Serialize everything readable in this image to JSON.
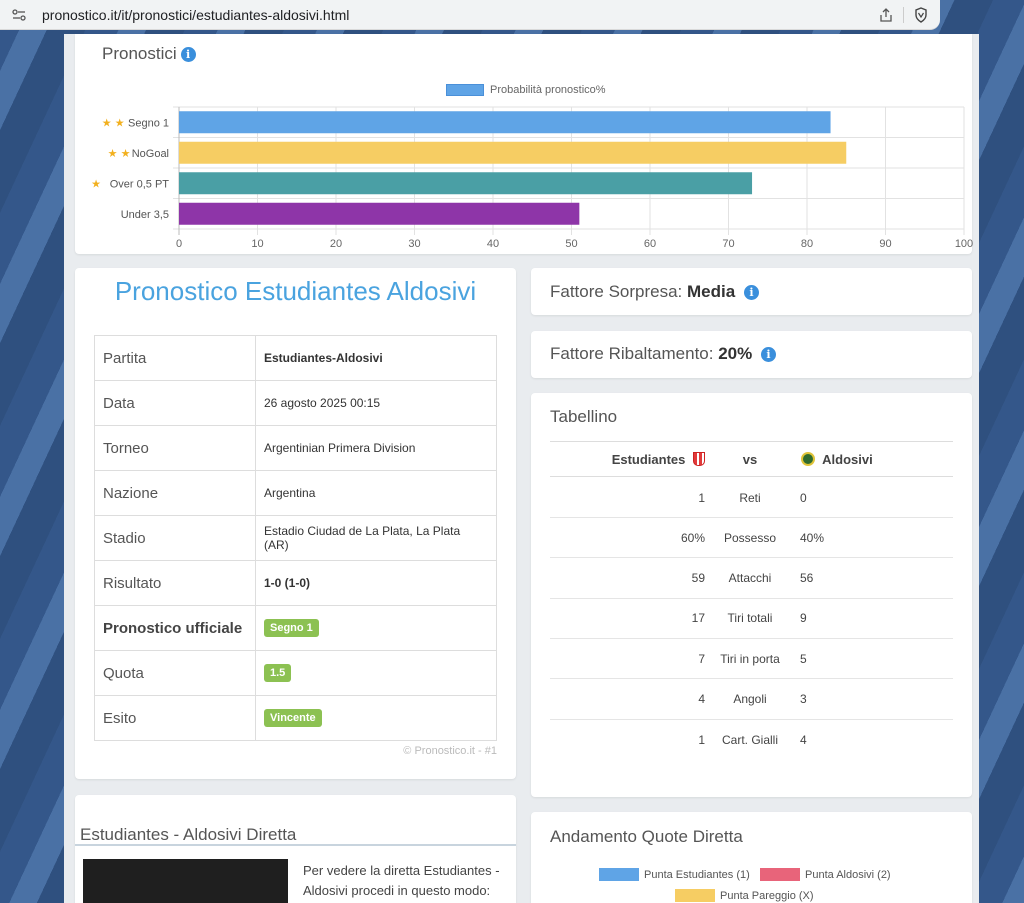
{
  "browser": {
    "url": "pronostico.it/it/pronostici/estudiantes-aldosivi.html"
  },
  "pronostici": {
    "title": "Pronostici",
    "legend": "Probabilità pronostico%",
    "chart_data": {
      "type": "bar",
      "orientation": "horizontal",
      "categories": [
        "Segno 1",
        "NoGoal",
        "Over 0,5 PT",
        "Under 3,5"
      ],
      "stars": [
        2,
        2,
        1,
        0
      ],
      "series": [
        {
          "name": "Probabilità pronostico%",
          "values": [
            83,
            85,
            73,
            51
          ]
        }
      ],
      "colors": [
        "#5fa4e6",
        "#f6cd63",
        "#4a9fa5",
        "#8e35a8"
      ],
      "xlim": [
        0,
        100
      ],
      "ticks": [
        "0",
        "10",
        "20",
        "30",
        "40",
        "50",
        "60",
        "70",
        "80",
        "90",
        "100"
      ],
      "grid": true,
      "legend_position": "top"
    }
  },
  "match": {
    "title": "Pronostico Estudiantes Aldosivi",
    "rows": [
      {
        "k": "Partita",
        "v": "Estudiantes-Aldosivi",
        "bold": true
      },
      {
        "k": "Data",
        "v": "26 agosto 2025 00:15"
      },
      {
        "k": "Torneo",
        "v": "Argentinian Primera Division"
      },
      {
        "k": "Nazione",
        "v": "Argentina"
      },
      {
        "k": "Stadio",
        "v": "Estadio Ciudad de La Plata, La Plata (AR)"
      },
      {
        "k": "Risultato",
        "v": "1-0 (1-0)",
        "bold": true
      },
      {
        "k": "Pronostico ufficiale",
        "v": "Segno 1",
        "badge": true,
        "kbold": true
      },
      {
        "k": "Quota",
        "v": "1.5",
        "badge": true
      },
      {
        "k": "Esito",
        "v": "Vincente",
        "badge": true
      }
    ],
    "footer": "© Pronostico.it - #1"
  },
  "sorpresa": {
    "label": "Fattore Sorpresa:",
    "value": "Media"
  },
  "ribaltamento": {
    "label": "Fattore Ribaltamento:",
    "value": "20%"
  },
  "tabellino": {
    "title": "Tabellino",
    "home": "Estudiantes",
    "vs": "vs",
    "away": "Aldosivi",
    "rows": [
      {
        "h": "1",
        "m": "Reti",
        "a": "0"
      },
      {
        "h": "60%",
        "m": "Possesso",
        "a": "40%"
      },
      {
        "h": "59",
        "m": "Attacchi",
        "a": "56"
      },
      {
        "h": "17",
        "m": "Tiri totali",
        "a": "9"
      },
      {
        "h": "7",
        "m": "Tiri in porta",
        "a": "5"
      },
      {
        "h": "4",
        "m": "Angoli",
        "a": "3"
      },
      {
        "h": "1",
        "m": "Cart. Gialli",
        "a": "4"
      }
    ]
  },
  "diretta": {
    "title": "Estudiantes - Aldosivi Diretta",
    "text": "Per vedere la diretta Estudiantes - Aldosivi procedi in questo modo:"
  },
  "quote": {
    "title": "Andamento Quote Diretta",
    "legend": [
      {
        "label": "Punta Estudiantes (1)",
        "color": "#5fa4e6"
      },
      {
        "label": "Punta Aldosivi (2)",
        "color": "#e8647a"
      },
      {
        "label": "Punta Pareggio (X)",
        "color": "#f6cd63"
      }
    ]
  }
}
